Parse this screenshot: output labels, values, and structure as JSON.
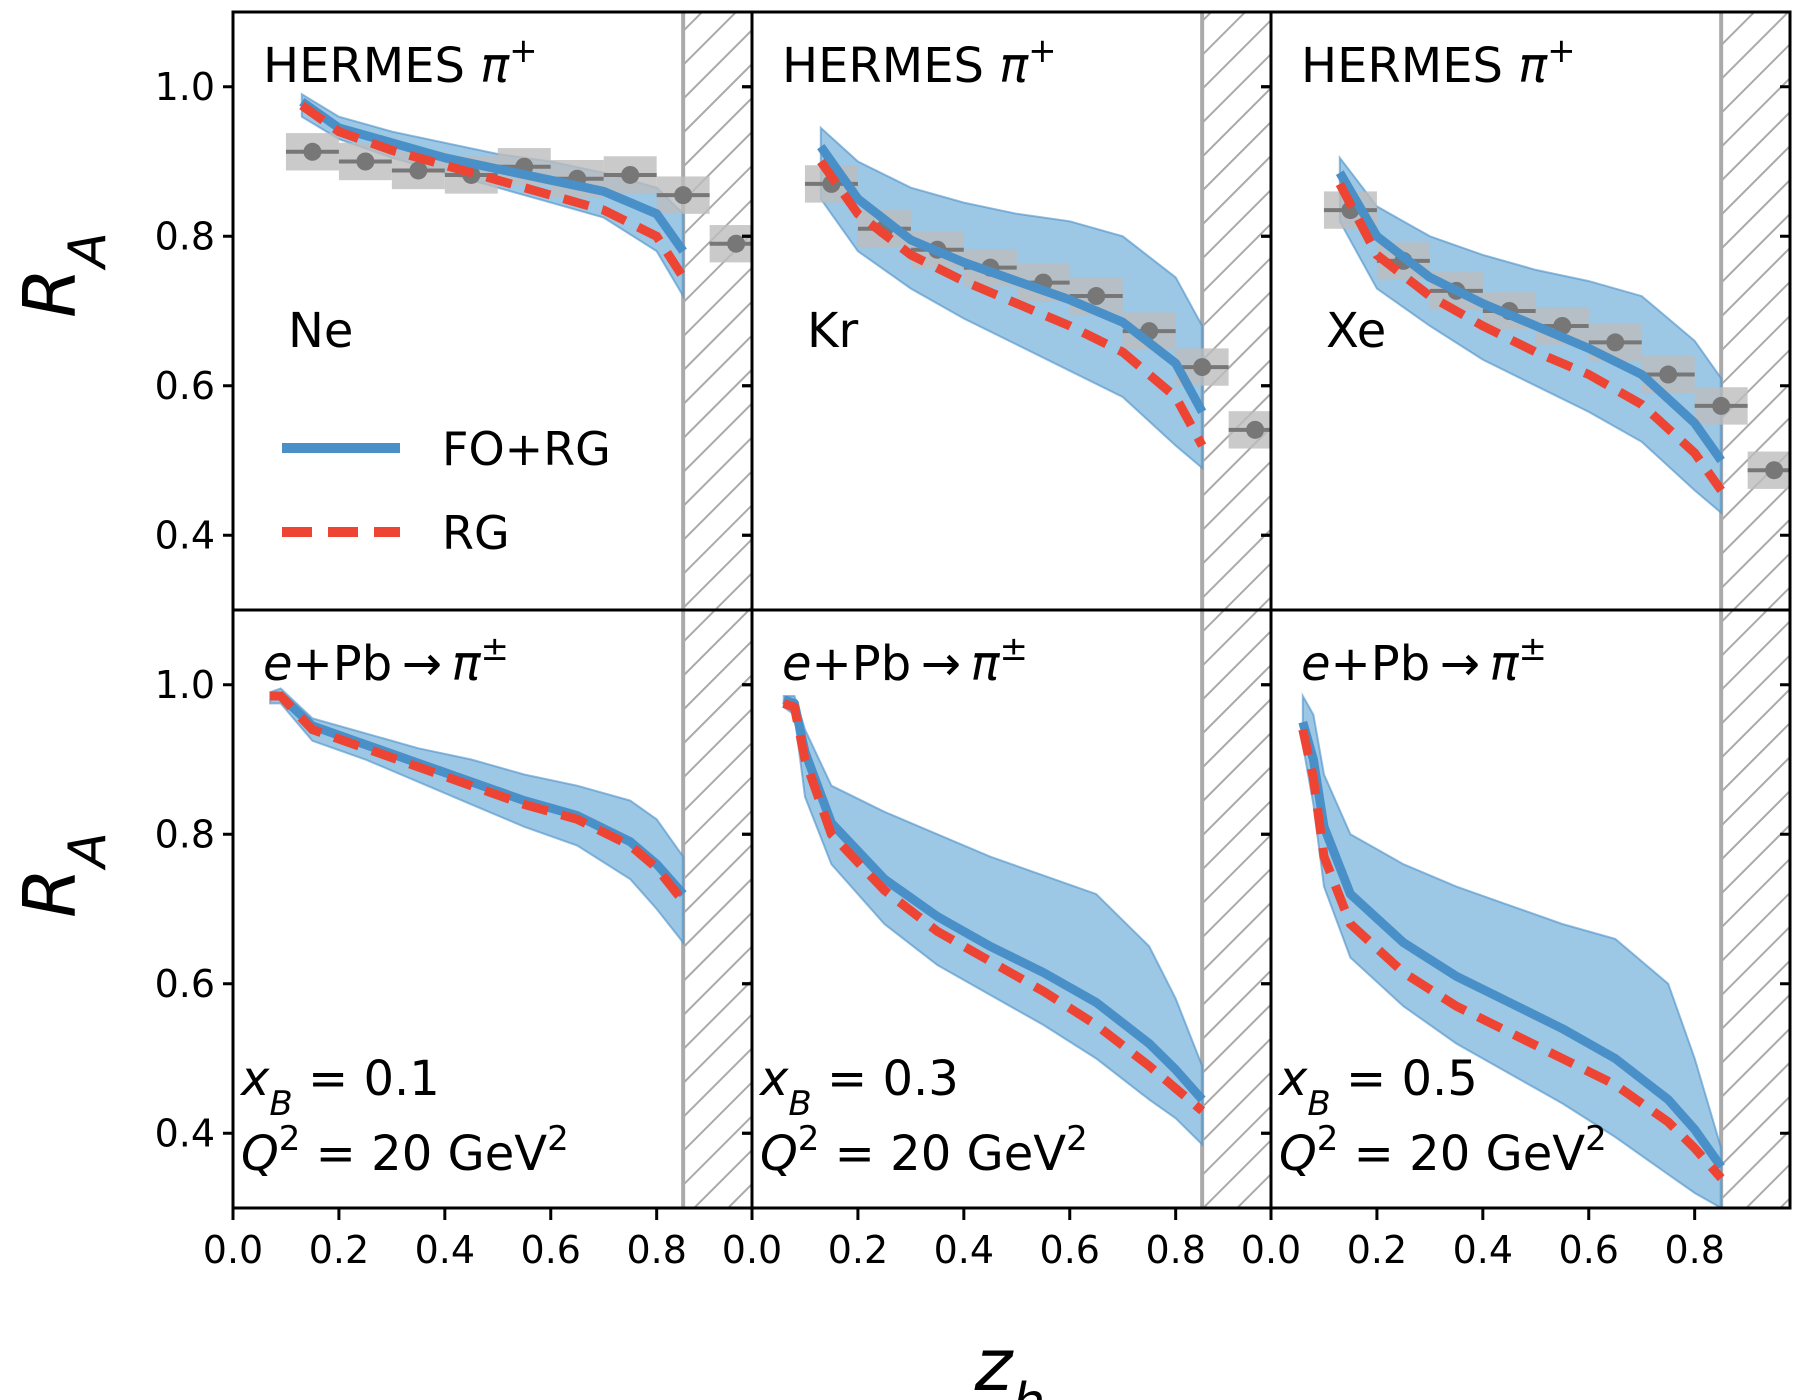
{
  "chart_data": {
    "type": "line",
    "xlabel": "z_h",
    "ylabel": "R_A",
    "xlim": [
      0.0,
      0.98
    ],
    "ylim": [
      0.3,
      1.1
    ],
    "x_ticks": [
      "0.0",
      "0.2",
      "0.4",
      "0.6",
      "0.8"
    ],
    "y_ticks": [
      "0.4",
      "0.6",
      "0.8",
      "1.0"
    ],
    "excluded_region_x": [
      0.85,
      0.98
    ],
    "legend": {
      "location": "top-left panel, lower left",
      "entries": [
        {
          "name": "FO+RG",
          "color": "#4a90c8",
          "style": "solid"
        },
        {
          "name": "RG",
          "color": "#ee4433",
          "style": "dashed"
        }
      ]
    },
    "colors": {
      "fo_rg": "#4a90c8",
      "band": "#8bbde0",
      "rg": "#ee4433",
      "data": "#777777",
      "data_box": "#bdbdbd",
      "hatch": "#aaaaaa"
    },
    "panels": [
      {
        "title": "HERMES π⁺",
        "label": "Ne",
        "z": [
          0.13,
          0.2,
          0.3,
          0.4,
          0.5,
          0.6,
          0.7,
          0.8,
          0.85
        ],
        "fo_rg": [
          0.98,
          0.945,
          0.925,
          0.905,
          0.89,
          0.875,
          0.86,
          0.83,
          0.78
        ],
        "rg": [
          0.975,
          0.94,
          0.915,
          0.895,
          0.875,
          0.855,
          0.835,
          0.8,
          0.745
        ],
        "band_upper": [
          0.99,
          0.96,
          0.94,
          0.925,
          0.91,
          0.9,
          0.885,
          0.865,
          0.83
        ],
        "band_lower": [
          0.96,
          0.93,
          0.905,
          0.885,
          0.865,
          0.845,
          0.825,
          0.78,
          0.72
        ],
        "points": {
          "x": [
            0.15,
            0.25,
            0.35,
            0.45,
            0.55,
            0.65,
            0.75,
            0.85,
            0.95
          ],
          "y": [
            0.913,
            0.9,
            0.888,
            0.882,
            0.893,
            0.877,
            0.882,
            0.855,
            0.79
          ]
        }
      },
      {
        "title": "HERMES π⁺",
        "label": "Kr",
        "z": [
          0.13,
          0.2,
          0.3,
          0.4,
          0.5,
          0.6,
          0.7,
          0.8,
          0.85
        ],
        "fo_rg": [
          0.92,
          0.85,
          0.795,
          0.765,
          0.74,
          0.715,
          0.685,
          0.63,
          0.565
        ],
        "rg": [
          0.9,
          0.83,
          0.775,
          0.74,
          0.71,
          0.68,
          0.645,
          0.585,
          0.52
        ],
        "band_upper": [
          0.945,
          0.9,
          0.865,
          0.845,
          0.83,
          0.82,
          0.8,
          0.745,
          0.68
        ],
        "band_lower": [
          0.85,
          0.78,
          0.73,
          0.69,
          0.655,
          0.62,
          0.585,
          0.52,
          0.49
        ],
        "points": {
          "x": [
            0.15,
            0.25,
            0.35,
            0.45,
            0.55,
            0.65,
            0.75,
            0.85,
            0.95
          ],
          "y": [
            0.87,
            0.81,
            0.782,
            0.758,
            0.738,
            0.72,
            0.673,
            0.625,
            0.541
          ]
        }
      },
      {
        "title": "HERMES π⁺",
        "label": "Xe",
        "z": [
          0.13,
          0.2,
          0.3,
          0.4,
          0.5,
          0.6,
          0.7,
          0.8,
          0.85
        ],
        "fo_rg": [
          0.885,
          0.8,
          0.745,
          0.71,
          0.68,
          0.65,
          0.615,
          0.55,
          0.5
        ],
        "rg": [
          0.87,
          0.775,
          0.72,
          0.68,
          0.645,
          0.615,
          0.575,
          0.51,
          0.46
        ],
        "band_upper": [
          0.905,
          0.84,
          0.8,
          0.775,
          0.755,
          0.74,
          0.72,
          0.66,
          0.61
        ],
        "band_lower": [
          0.82,
          0.73,
          0.68,
          0.635,
          0.6,
          0.565,
          0.525,
          0.46,
          0.43
        ],
        "points": {
          "x": [
            0.15,
            0.25,
            0.35,
            0.45,
            0.55,
            0.65,
            0.75,
            0.85,
            0.95
          ],
          "y": [
            0.835,
            0.767,
            0.727,
            0.7,
            0.68,
            0.658,
            0.615,
            0.573,
            0.487
          ]
        }
      },
      {
        "title": "e+Pb→π±",
        "label": "x_B=0.1, Q²=20 GeV²",
        "z": [
          0.07,
          0.09,
          0.15,
          0.25,
          0.35,
          0.45,
          0.55,
          0.65,
          0.75,
          0.8,
          0.85
        ],
        "fo_rg": [
          0.985,
          0.985,
          0.945,
          0.92,
          0.895,
          0.87,
          0.845,
          0.825,
          0.79,
          0.76,
          0.72
        ],
        "rg": [
          0.985,
          0.985,
          0.94,
          0.915,
          0.89,
          0.865,
          0.84,
          0.82,
          0.785,
          0.755,
          0.71
        ],
        "band_upper": [
          0.99,
          0.995,
          0.955,
          0.935,
          0.915,
          0.9,
          0.88,
          0.865,
          0.845,
          0.82,
          0.77
        ],
        "band_lower": [
          0.975,
          0.975,
          0.925,
          0.9,
          0.87,
          0.84,
          0.81,
          0.785,
          0.74,
          0.7,
          0.655
        ],
        "points": null
      },
      {
        "title": "e+Pb→π±",
        "label": "x_B=0.3, Q²=20 GeV²",
        "z": [
          0.06,
          0.08,
          0.1,
          0.15,
          0.25,
          0.35,
          0.45,
          0.55,
          0.65,
          0.75,
          0.8,
          0.85
        ],
        "fo_rg": [
          0.98,
          0.975,
          0.91,
          0.815,
          0.74,
          0.69,
          0.65,
          0.615,
          0.575,
          0.52,
          0.485,
          0.445
        ],
        "rg": [
          0.975,
          0.97,
          0.9,
          0.8,
          0.725,
          0.67,
          0.63,
          0.59,
          0.545,
          0.49,
          0.46,
          0.43
        ],
        "band_upper": [
          0.985,
          0.985,
          0.94,
          0.865,
          0.83,
          0.8,
          0.77,
          0.745,
          0.72,
          0.65,
          0.58,
          0.49
        ],
        "band_lower": [
          0.97,
          0.96,
          0.85,
          0.76,
          0.68,
          0.625,
          0.585,
          0.545,
          0.5,
          0.445,
          0.42,
          0.385
        ],
        "points": null
      },
      {
        "title": "e+Pb→π±",
        "label": "x_B=0.5, Q²=20 GeV²",
        "z": [
          0.06,
          0.08,
          0.1,
          0.15,
          0.25,
          0.35,
          0.45,
          0.55,
          0.65,
          0.75,
          0.8,
          0.85
        ],
        "fo_rg": [
          0.95,
          0.9,
          0.81,
          0.72,
          0.655,
          0.61,
          0.575,
          0.54,
          0.5,
          0.445,
          0.405,
          0.355
        ],
        "rg": [
          0.94,
          0.875,
          0.77,
          0.68,
          0.615,
          0.57,
          0.535,
          0.5,
          0.465,
          0.415,
          0.38,
          0.34
        ],
        "band_upper": [
          0.985,
          0.96,
          0.88,
          0.8,
          0.76,
          0.73,
          0.705,
          0.68,
          0.66,
          0.6,
          0.5,
          0.38
        ],
        "band_lower": [
          0.92,
          0.84,
          0.73,
          0.635,
          0.57,
          0.52,
          0.48,
          0.44,
          0.395,
          0.345,
          0.32,
          0.3
        ],
        "points": null
      }
    ]
  }
}
